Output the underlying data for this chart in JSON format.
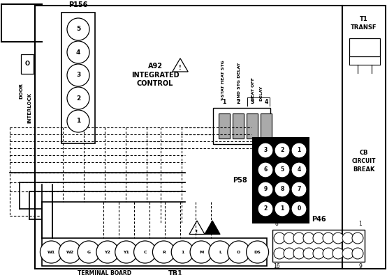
{
  "bg_color": "#ffffff",
  "fg_color": "#000000",
  "p156_label": "P156",
  "p156_pins": [
    "5",
    "4",
    "3",
    "2",
    "1"
  ],
  "p58_label": "P58",
  "p58_pins_rows": [
    [
      "3",
      "2",
      "1"
    ],
    [
      "6",
      "5",
      "4"
    ],
    [
      "9",
      "8",
      "7"
    ],
    [
      "2",
      "1",
      "0"
    ]
  ],
  "p46_label": "P46",
  "p46_pin_tl": "8",
  "p46_pin_tr": "1",
  "p46_pin_bl": "16",
  "p46_pin_br": "9",
  "tb1_label": "TB1",
  "tb1_terminals": [
    "W1",
    "W2",
    "G",
    "Y2",
    "Y1",
    "C",
    "R",
    "1",
    "M",
    "L",
    "O",
    "DS"
  ],
  "terminal_board_label": "TERMINAL BOARD",
  "a92_line1": "A92",
  "a92_line2": "INTEGRATED",
  "a92_line3": "CONTROL",
  "t1_label": "T1\nTRANSF",
  "cb_label": "CB\nCIRCU\nBREAK",
  "interlock_label": "INTERLOCK",
  "door_label": "DOOR",
  "relay_label1": "T-STAT HEAT STG",
  "relay_label2": "2ND STG DELAY",
  "relay_label3": "HEAT OFF",
  "relay_label4": "DELAY",
  "relay_pins": [
    "1",
    "2",
    "3",
    "4"
  ]
}
